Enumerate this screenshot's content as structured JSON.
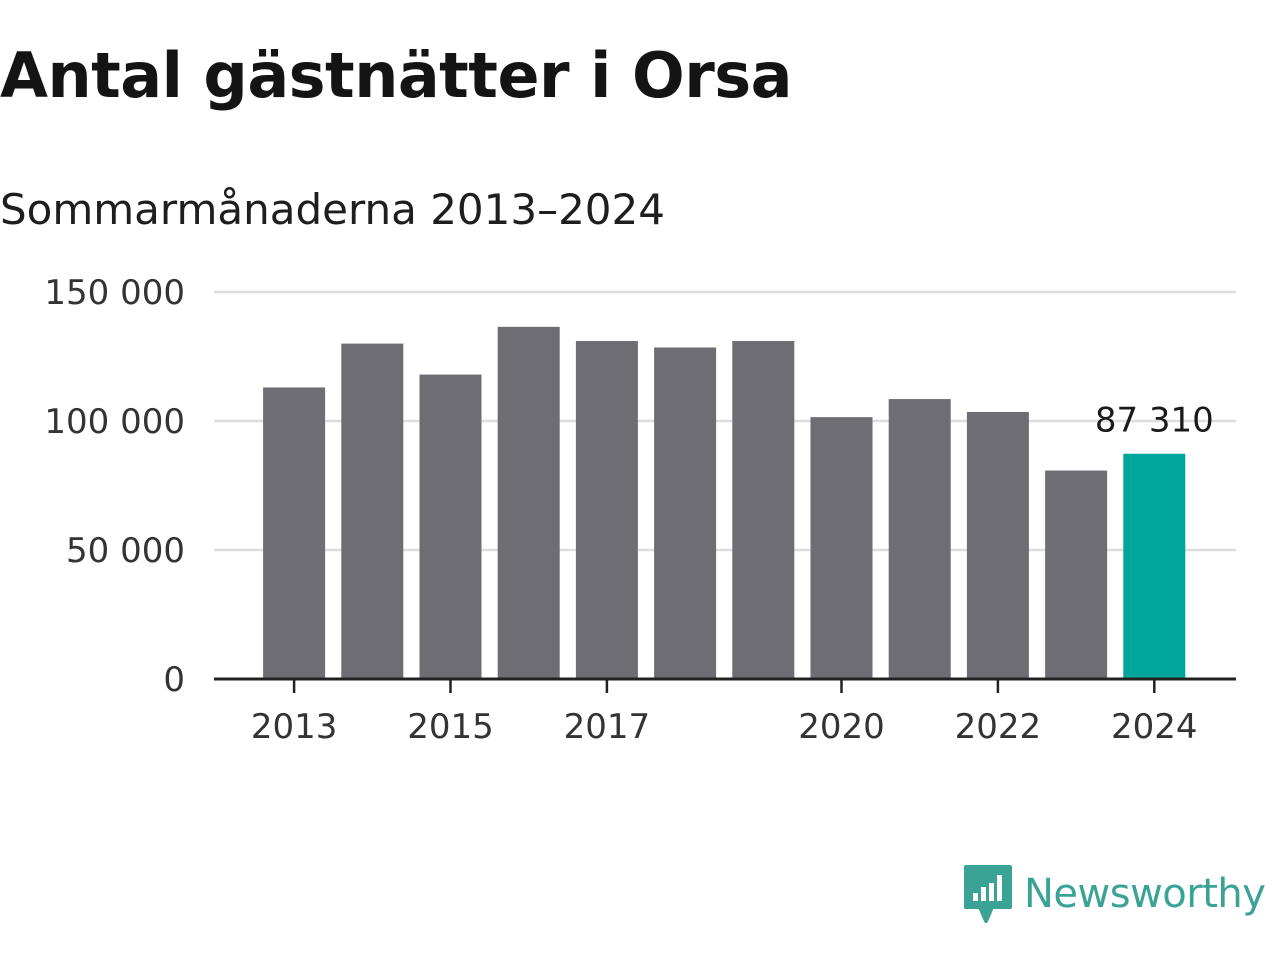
{
  "title": "Antal gästnätter i Orsa",
  "subtitle": "Sommarmånaderna 2013–2024",
  "colors": {
    "bar": "#6e6d74",
    "highlight": "#00a59b",
    "grid": "#dddddd",
    "axis": "#222222",
    "brand": "#3aa396"
  },
  "logo": {
    "text": "Newsworthy",
    "icon": "newsworthy-chart-icon"
  },
  "chart_data": {
    "type": "bar",
    "categories": [
      "2013",
      "2014",
      "2015",
      "2016",
      "2017",
      "2018",
      "2019",
      "2020",
      "2021",
      "2022",
      "2023",
      "2024"
    ],
    "values": [
      113000,
      130000,
      118000,
      136500,
      131000,
      128500,
      131000,
      101500,
      108500,
      103500,
      80800,
      87310
    ],
    "highlight_index": 11,
    "y_ticks": [
      0,
      50000,
      100000,
      150000
    ],
    "y_tick_labels": [
      "0",
      "50 000",
      "100 000",
      "150 000"
    ],
    "x_tick_labels": [
      "2013",
      "2015",
      "2017",
      "2020",
      "2022",
      "2024"
    ],
    "x_tick_categories": [
      "2013",
      "2015",
      "2017",
      "2020",
      "2022",
      "2024"
    ],
    "ylim": [
      0,
      150000
    ],
    "data_labels": [
      {
        "category": "2024",
        "text": "87 310"
      }
    ],
    "grid": true
  }
}
